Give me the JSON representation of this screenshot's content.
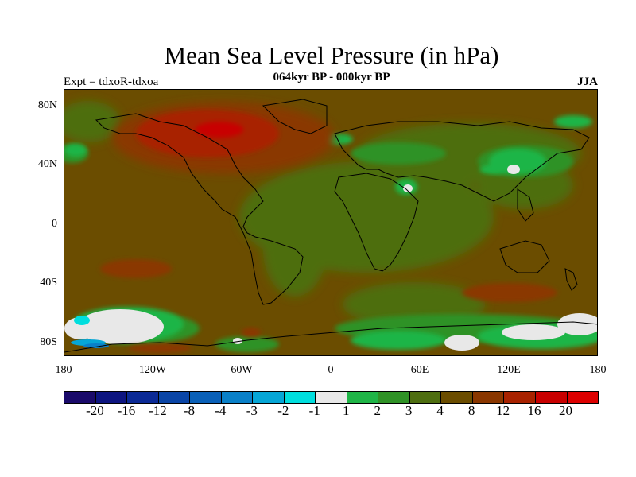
{
  "title": "Mean Sea Level Pressure (in hPa)",
  "subtitle": "064kyr BP - 000kyr BP",
  "left_label": "Expt = tdxoR-tdxoa",
  "right_label": "JJA",
  "map": {
    "projection": "cylindrical equidistant",
    "lon_range": [
      -180,
      180
    ],
    "lat_range": [
      -90,
      90
    ],
    "lat_ticks": [
      "80N",
      "40N",
      "0",
      "40S",
      "80S"
    ],
    "lon_ticks": [
      "180",
      "120W",
      "60W",
      "0",
      "60E",
      "120E",
      "180"
    ],
    "coastlines": true
  },
  "colorbar": {
    "labels": [
      "-20",
      "-16",
      "-12",
      "-8",
      "-4",
      "-3",
      "-2",
      "-1",
      "1",
      "2",
      "3",
      "4",
      "8",
      "12",
      "16",
      "20"
    ],
    "colors": [
      "#1a0a6a",
      "#0d1580",
      "#0b2a96",
      "#0a45a6",
      "#0a60b8",
      "#0a80c8",
      "#06a6d6",
      "#00dede",
      "#e8e8e8",
      "#1fb547",
      "#2f9226",
      "#4e6e10",
      "#6b4d00",
      "#8a3700",
      "#a82200",
      "#c80000",
      "#dd0000"
    ]
  }
}
